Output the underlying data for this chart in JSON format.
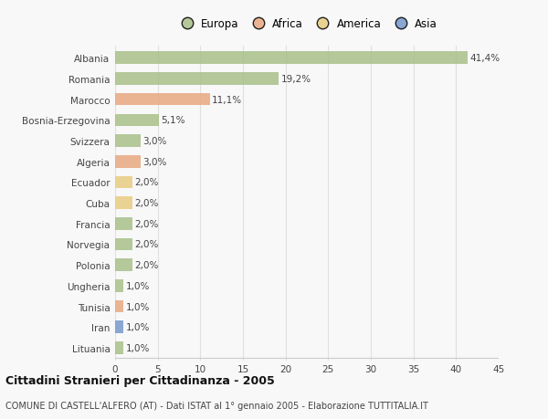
{
  "countries": [
    "Albania",
    "Romania",
    "Marocco",
    "Bosnia-Erzegovina",
    "Svizzera",
    "Algeria",
    "Ecuador",
    "Cuba",
    "Francia",
    "Norvegia",
    "Polonia",
    "Ungheria",
    "Tunisia",
    "Iran",
    "Lituania"
  ],
  "values": [
    41.4,
    19.2,
    11.1,
    5.1,
    3.0,
    3.0,
    2.0,
    2.0,
    2.0,
    2.0,
    2.0,
    1.0,
    1.0,
    1.0,
    1.0
  ],
  "labels": [
    "41,4%",
    "19,2%",
    "11,1%",
    "5,1%",
    "3,0%",
    "3,0%",
    "2,0%",
    "2,0%",
    "2,0%",
    "2,0%",
    "2,0%",
    "1,0%",
    "1,0%",
    "1,0%",
    "1,0%"
  ],
  "colors": [
    "#a8c08a",
    "#a8c08a",
    "#e8a882",
    "#a8c08a",
    "#a8c08a",
    "#e8a882",
    "#e8cc82",
    "#e8cc82",
    "#a8c08a",
    "#a8c08a",
    "#a8c08a",
    "#a8c08a",
    "#e8a882",
    "#7799cc",
    "#a8c08a"
  ],
  "legend_labels": [
    "Europa",
    "Africa",
    "America",
    "Asia"
  ],
  "legend_colors": [
    "#a8c08a",
    "#e8a882",
    "#e8cc82",
    "#7799cc"
  ],
  "xlim": [
    0,
    45
  ],
  "xticks": [
    0,
    5,
    10,
    15,
    20,
    25,
    30,
    35,
    40,
    45
  ],
  "title": "Cittadini Stranieri per Cittadinanza - 2005",
  "subtitle": "COMUNE DI CASTELL'ALFERO (AT) - Dati ISTAT al 1° gennaio 2005 - Elaborazione TUTTITALIA.IT",
  "background_color": "#f8f8f8",
  "grid_color": "#e0e0e0"
}
